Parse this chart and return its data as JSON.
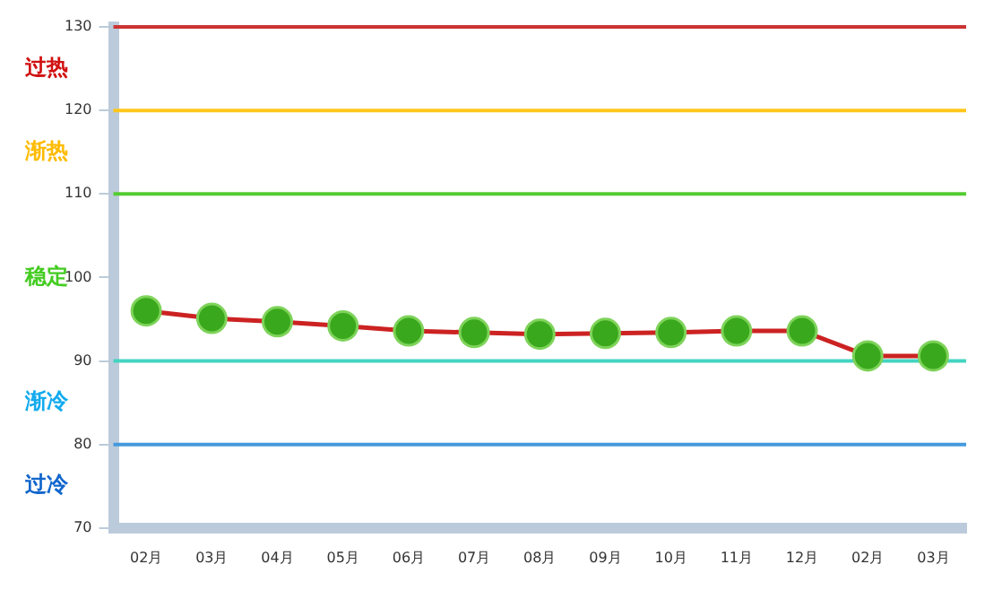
{
  "chart_data": {
    "type": "line",
    "categories": [
      "02月",
      "03月",
      "04月",
      "05月",
      "06月",
      "07月",
      "08月",
      "09月",
      "10月",
      "11月",
      "12月",
      "02月",
      "03月"
    ],
    "series": [
      {
        "color": "#cc2222",
        "values": [
          96.0,
          95.1,
          94.7,
          94.2,
          93.6,
          93.4,
          93.2,
          93.3,
          93.4,
          93.6,
          93.6,
          90.6,
          90.6
        ]
      }
    ],
    "ylim": [
      70,
      130
    ],
    "yticks": [
      70,
      80,
      90,
      100,
      110,
      120,
      130
    ],
    "ref_lines": [
      {
        "axis": "y",
        "value": 130,
        "color": "#cc3333"
      },
      {
        "axis": "y",
        "value": 120,
        "color": "#ffc61a"
      },
      {
        "axis": "y",
        "value": 110,
        "color": "#55cc33"
      },
      {
        "axis": "y",
        "value": 90,
        "color": "#44d4c0"
      },
      {
        "axis": "y",
        "value": 80,
        "color": "#4499dd"
      }
    ],
    "annotations": [
      "过热",
      "渐热",
      "稳定",
      "渐冷",
      "过冷"
    ],
    "grid": false,
    "legend": false,
    "marker": "circle",
    "line_style": "solid"
  }
}
